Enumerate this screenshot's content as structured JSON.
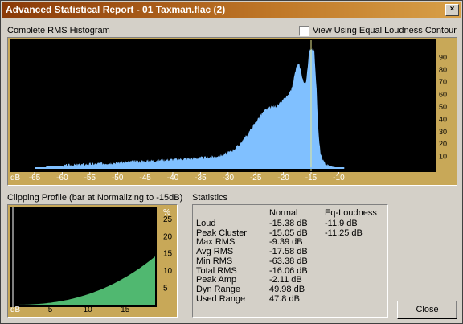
{
  "window": {
    "title": "Advanced Statistical Report - 01 Taxman.flac (2)",
    "close_glyph": "×"
  },
  "histogram": {
    "label": "Complete RMS Histogram",
    "equal_loudness_label": "View Using Equal Loudness Contour",
    "equal_loudness_checked": false,
    "x_unit": "dB",
    "x_ticks": [
      "-65",
      "-60",
      "-55",
      "-50",
      "-45",
      "-40",
      "-35",
      "-30",
      "-25",
      "-20",
      "-15",
      "-10"
    ],
    "y_ticks": [
      "90",
      "80",
      "70",
      "60",
      "50",
      "40",
      "30",
      "20",
      "10"
    ],
    "marker_db": -15
  },
  "clipping": {
    "label": "Clipping Profile (bar at Normalizing to -15dB)",
    "y_unit": "%",
    "x_unit": "dB",
    "x_ticks": [
      "5",
      "10",
      "15"
    ],
    "y_ticks": [
      "25",
      "20",
      "15",
      "10",
      "5"
    ]
  },
  "statistics": {
    "label": "Statistics",
    "col_normal": "Normal",
    "col_eq": "Eq-Loudness",
    "rows": [
      {
        "name": "Loud",
        "normal": "-15.38 dB",
        "eq": "-11.9 dB"
      },
      {
        "name": "Peak Cluster",
        "normal": "-15.05 dB",
        "eq": "-11.25 dB"
      },
      {
        "name": "Max RMS",
        "normal": "-9.39 dB",
        "eq": ""
      },
      {
        "name": "Avg RMS",
        "normal": "-17.58 dB",
        "eq": ""
      },
      {
        "name": "Min RMS",
        "normal": "-63.38 dB",
        "eq": ""
      },
      {
        "name": "Total RMS",
        "normal": "-16.06 dB",
        "eq": ""
      },
      {
        "name": "Peak Amp",
        "normal": "-2.11 dB",
        "eq": ""
      },
      {
        "name": "Dyn Range",
        "normal": "49.98 dB",
        "eq": ""
      },
      {
        "name": "Used Range",
        "normal": "47.8 dB",
        "eq": ""
      }
    ]
  },
  "buttons": {
    "close": "Close"
  },
  "colors": {
    "histogram_fill": "#80c0ff",
    "clipping_fill": "#50b870",
    "panel": "#c8a858",
    "marker": "#e8e890"
  }
}
